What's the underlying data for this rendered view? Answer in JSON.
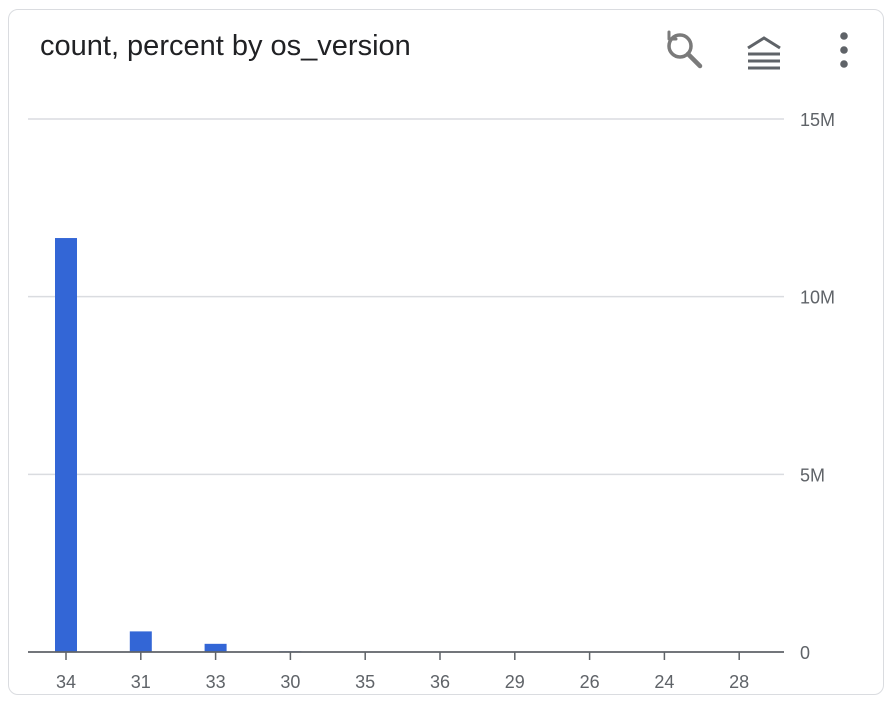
{
  "card": {
    "title": "count, percent by os_version",
    "icons": [
      "zoom-reset-icon",
      "chart-type-icon",
      "more-vert-icon"
    ],
    "colors": {
      "bar": "#3366d6",
      "grid": "#dadce0",
      "axis": "#5f6368"
    }
  },
  "chart_data": {
    "type": "bar",
    "categories": [
      "34",
      "31",
      "33",
      "30",
      "35",
      "36",
      "29",
      "26",
      "24",
      "28"
    ],
    "series": [
      {
        "values": [
          11650000,
          580000,
          230000,
          20000,
          10000,
          8000,
          5000,
          3000,
          2000,
          1000
        ]
      }
    ],
    "ylim": [
      0,
      15000000
    ],
    "yticks": [
      0,
      5000000,
      10000000,
      15000000
    ],
    "ytick_labels": [
      "0",
      "5M",
      "10M",
      "15M"
    ],
    "yaxis_side": "right",
    "grid": true,
    "legend": "none"
  }
}
